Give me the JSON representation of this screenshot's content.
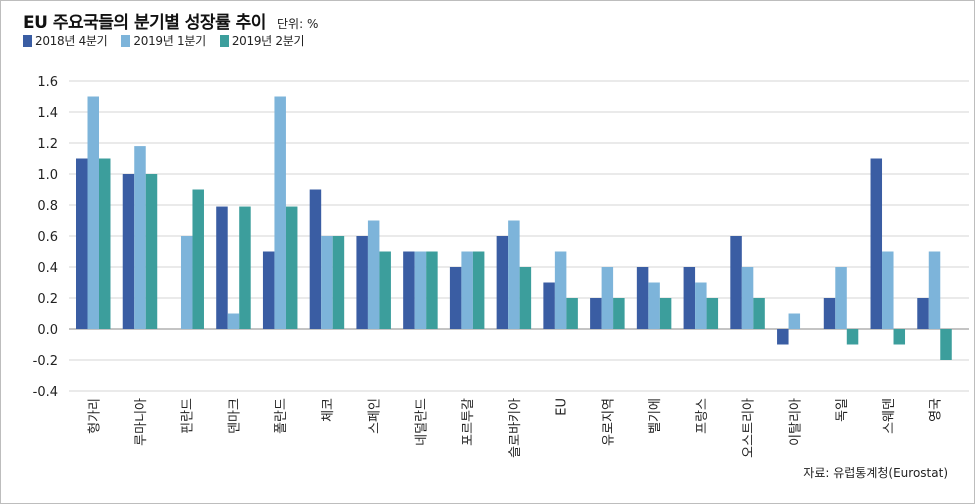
{
  "title": "EU 주요국들의 분기별 성장률 추이",
  "unit": "단위: %",
  "source": "자료: 유럽통계청(Eurostat)",
  "colors": {
    "2018q4": "#3a5da3",
    "2019q1": "#7db4da",
    "2019q2": "#3c9e9c",
    "grid": "#d6d6d6",
    "zero_line": "#8a8a8a"
  },
  "chart_data": {
    "type": "bar",
    "title": "EU 주요국들의 분기별 성장률 추이",
    "unit": "단위: %",
    "categories": [
      "헝가리",
      "루마니아",
      "핀란드",
      "덴마크",
      "폴란드",
      "체코",
      "스페인",
      "네덜란드",
      "포르투갈",
      "슬로바키아",
      "EU",
      "유로지역",
      "벨기에",
      "프랑스",
      "오스트리아",
      "이탈리아",
      "독일",
      "스웨덴",
      "영국"
    ],
    "series": [
      {
        "name": "2018년 4분기",
        "color": "#3a5da3",
        "values": [
          1.1,
          1.0,
          0.0,
          0.79,
          0.5,
          0.9,
          0.6,
          0.5,
          0.4,
          0.6,
          0.3,
          0.2,
          0.4,
          0.4,
          0.6,
          -0.1,
          0.2,
          1.1,
          0.2
        ]
      },
      {
        "name": "2019년 1분기",
        "color": "#7db4da",
        "values": [
          1.5,
          1.18,
          0.6,
          0.1,
          1.5,
          0.6,
          0.7,
          0.5,
          0.5,
          0.7,
          0.5,
          0.4,
          0.3,
          0.3,
          0.4,
          0.1,
          0.4,
          0.5,
          0.5
        ]
      },
      {
        "name": "2019년 2분기",
        "color": "#3c9e9c",
        "values": [
          1.1,
          1.0,
          0.9,
          0.79,
          0.79,
          0.6,
          0.5,
          0.5,
          0.5,
          0.4,
          0.2,
          0.2,
          0.2,
          0.2,
          0.2,
          0.0,
          -0.1,
          -0.1,
          -0.2
        ]
      }
    ],
    "yticks": [
      "1.6",
      "1.4",
      "1.2",
      "1.0",
      "0.8",
      "0.6",
      "0.4",
      "0.2",
      "0.0",
      "-0.2",
      "-0.4"
    ],
    "ylim": [
      -0.4,
      1.6
    ],
    "grid": true,
    "legend_position": "top-left"
  }
}
